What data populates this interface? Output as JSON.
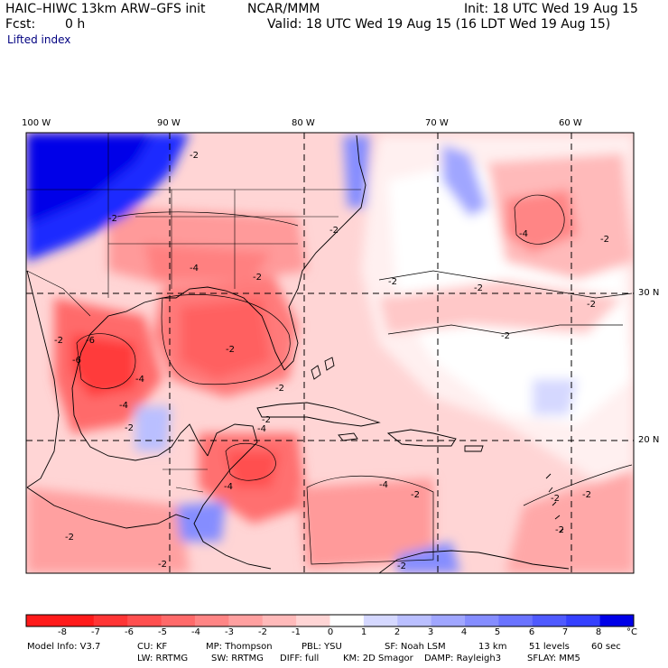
{
  "header": {
    "title": "HAIC–HIWC 13km ARW–GFS init",
    "org": "NCAR/MMM",
    "init": "Init: 18 UTC Wed 19 Aug 15",
    "fcst_label": "Fcst:",
    "fcst_value": "0 h",
    "valid": "Valid: 18 UTC Wed 19 Aug 15 (16 LDT Wed 19 Aug 15)",
    "field": "Lifted index"
  },
  "map": {
    "lon_labels": [
      "100 W",
      "90 W",
      "80 W",
      "70 W",
      "60 W"
    ],
    "lat_labels": [
      "30 N",
      "20 N"
    ],
    "contour_labels": [
      "-2",
      "-2",
      "-2",
      "-4",
      "-2",
      "-2",
      "-2",
      "-6",
      "-6",
      "-4",
      "-4",
      "-2",
      "-2",
      "-2",
      "-4",
      "-2",
      "-4",
      "-2",
      "-2",
      "-2",
      "-2",
      "-4",
      "-2",
      "-2",
      "-2",
      "-2",
      "-4",
      "-2",
      "-2",
      "-2"
    ],
    "colors": {
      "land_line": "#000000",
      "grid_line": "#000000"
    }
  },
  "colorbar": {
    "labels": [
      "-8",
      "-7",
      "-6",
      "-5",
      "-4",
      "-3",
      "-2",
      "-1",
      "0",
      "1",
      "2",
      "3",
      "4",
      "5",
      "6",
      "7",
      "8"
    ],
    "unit": "°C",
    "colors": [
      "#ff1a1a",
      "#ff3535",
      "#ff4f4f",
      "#ff6a6a",
      "#ff8585",
      "#ffa0a0",
      "#ffbaba",
      "#ffd5d5",
      "#ffffff",
      "#d5d8ff",
      "#babfff",
      "#a0a6ff",
      "#858dff",
      "#6a73ff",
      "#4f5aff",
      "#3540ff",
      "#0000e8"
    ]
  },
  "footer": {
    "line1": [
      "Model Info: V3.7",
      "CU: KF",
      "MP: Thompson",
      "PBL: YSU",
      "SF: Noah LSM",
      "13 km",
      "51 levels",
      "60 sec"
    ],
    "line2": [
      "LW: RRTMG",
      "SW: RRTMG",
      "DIFF: full",
      "KM: 2D Smagor",
      "DAMP: Rayleigh3",
      "SFLAY: MM5"
    ]
  }
}
